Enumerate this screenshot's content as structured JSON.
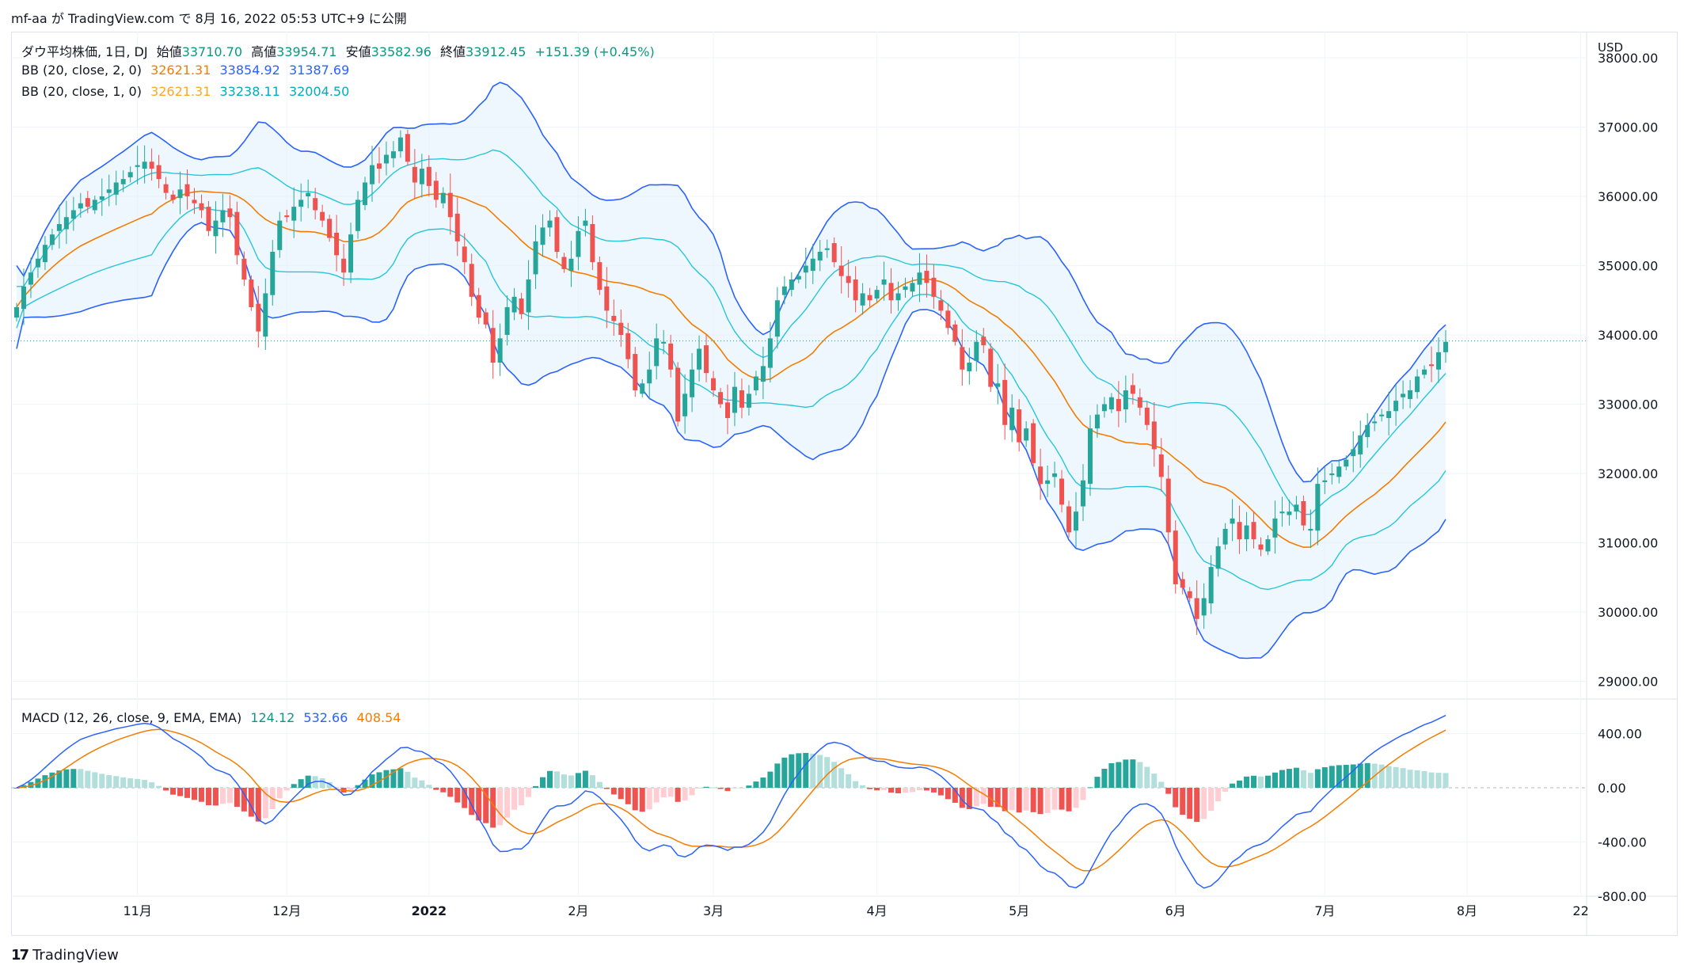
{
  "header": {
    "publish_line": "mf-aa が TradingView.com で 8月 16, 2022 05:53 UTC+9 に公開"
  },
  "legend": {
    "symbol": "ダウ平均株価, 1日, DJ",
    "open_label": "始値",
    "open": "33710.70",
    "high_label": "高値",
    "high": "33954.71",
    "low_label": "安値",
    "low": "33582.96",
    "close_label": "終値",
    "close": "33912.45",
    "change": "+151.39 (+0.45%)",
    "bb2_label": "BB (20, close, 2, 0)",
    "bb2_basis": "32621.31",
    "bb2_upper": "33854.92",
    "bb2_lower": "31387.69",
    "bb1_label": "BB (20, close, 1, 0)",
    "bb1_basis": "32621.31",
    "bb1_upper": "33238.11",
    "bb1_lower": "32004.50",
    "macd_label": "MACD (12, 26, close, 9, EMA, EMA)",
    "macd_hist": "124.12",
    "macd_line": "532.66",
    "macd_signal": "408.54"
  },
  "footer": {
    "brand": "TradingView",
    "logo_glyph": "17"
  },
  "colors": {
    "up": "#26a69a",
    "down": "#ef5350",
    "bb2": "#2962ff",
    "bb_basis": "#f57c00",
    "bb1": "#26c6da",
    "band_fill": "#e3f2fd",
    "macd_line": "#2962ff",
    "macd_signal": "#f57c00",
    "hist_pos_strong": "#26a69a",
    "hist_pos_weak": "#b2dfdb",
    "hist_neg_strong": "#ef5350",
    "hist_neg_weak": "#ffcdd2"
  },
  "chart_data": [
    {
      "type": "candlestick",
      "currency": "USD",
      "ylim": [
        29000,
        38000
      ],
      "y_ticks": [
        "38000.00",
        "37000.00",
        "36000.00",
        "35000.00",
        "34000.00",
        "33000.00",
        "32000.00",
        "31000.00",
        "30000.00",
        "29000.00"
      ],
      "x_ticks": [
        "11月",
        "12月",
        "2022",
        "2月",
        "3月",
        "4月",
        "5月",
        "6月",
        "7月",
        "8月",
        "22"
      ],
      "x_tick_index": [
        17,
        38,
        58,
        79,
        98,
        121,
        141,
        163,
        184,
        204,
        220
      ],
      "dates_range": [
        "2021-10-18",
        "2022-08-15"
      ],
      "last_price": 33912.45,
      "close": [
        34400,
        34700,
        34900,
        35100,
        35300,
        35450,
        35600,
        35700,
        35800,
        35900,
        35850,
        35950,
        36000,
        36100,
        36200,
        36250,
        36350,
        36450,
        36500,
        36400,
        36250,
        36050,
        35950,
        36100,
        36000,
        35900,
        35800,
        35500,
        35650,
        35800,
        35700,
        35150,
        34800,
        34400,
        34050,
        34600,
        35200,
        35650,
        35700,
        35850,
        35950,
        36050,
        35800,
        35650,
        35400,
        35150,
        34900,
        35450,
        35950,
        36200,
        36450,
        36400,
        36600,
        36650,
        36850,
        36500,
        36200,
        36400,
        36150,
        35950,
        36050,
        35700,
        35350,
        35050,
        34550,
        34250,
        34150,
        33600,
        33950,
        34400,
        34550,
        34300,
        34800,
        35350,
        35550,
        35650,
        35200,
        34950,
        35100,
        35500,
        35650,
        35050,
        34650,
        34350,
        34200,
        34000,
        33650,
        33200,
        33300,
        33500,
        33950,
        33900,
        33500,
        32750,
        33150,
        33500,
        33800,
        33450,
        33200,
        33000,
        32800,
        33250,
        32950,
        33150,
        33400,
        33550,
        33950,
        34500,
        34700,
        34800,
        34850,
        35000,
        35100,
        35200,
        35250,
        35050,
        34850,
        34750,
        34500,
        34600,
        34500,
        34650,
        34800,
        34500,
        34600,
        34700,
        34750,
        34900,
        34750,
        34550,
        34350,
        34100,
        33900,
        33500,
        33600,
        33900,
        33850,
        33250,
        33300,
        32700,
        32950,
        32450,
        32650,
        32150,
        31850,
        31900,
        32000,
        31550,
        31150,
        31450,
        31900,
        32650,
        32850,
        33000,
        33100,
        32900,
        33200,
        33150,
        32950,
        32700,
        32350,
        31950,
        31150,
        30400,
        30350,
        30200,
        29900,
        30200,
        30650,
        30950,
        31200,
        31350,
        31050,
        31250,
        31050,
        30900,
        31050,
        31350,
        31450,
        31450,
        31550,
        31250,
        31200,
        31850,
        31900,
        32000,
        32100,
        32200,
        32350,
        32550,
        32700,
        32750,
        32850,
        32900,
        33050,
        33150,
        33200,
        33400,
        33500,
        33550,
        33750,
        33900
      ]
    },
    {
      "type": "macd_histogram",
      "ylim": [
        -800,
        600
      ],
      "y_ticks": [
        "400.00",
        "0.00",
        "-400.00",
        "-800.00"
      ],
      "series": [
        "MACD",
        "Signal",
        "Histogram"
      ]
    }
  ]
}
